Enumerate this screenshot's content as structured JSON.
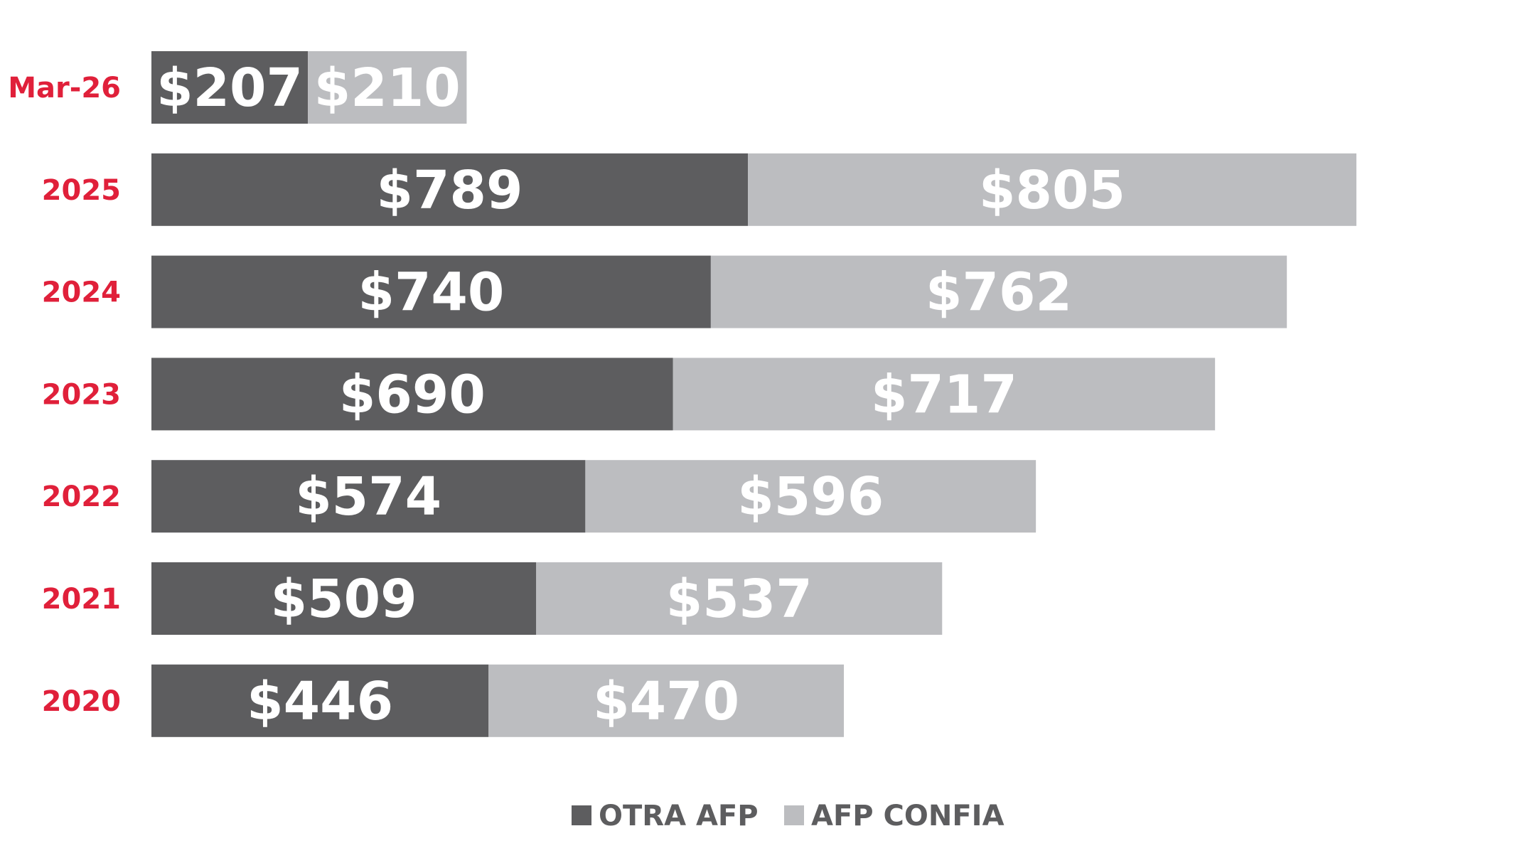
{
  "chart_data": {
    "type": "bar",
    "orientation": "horizontal",
    "stacked": true,
    "categories": [
      "Mar-26",
      "2025",
      "2024",
      "2023",
      "2022",
      "2021",
      "2020"
    ],
    "series": [
      {
        "name": "OTRA AFP",
        "values": [
          207,
          789,
          740,
          690,
          574,
          509,
          446
        ],
        "labels": [
          "$207",
          "$789",
          "$740",
          "$690",
          "$574",
          "$509",
          "$446"
        ],
        "color": "#5d5d5f"
      },
      {
        "name": "AFP CONFIA",
        "values": [
          210,
          805,
          762,
          717,
          596,
          537,
          470
        ],
        "labels": [
          "$210",
          "$805",
          "$762",
          "$717",
          "$596",
          "$537",
          "$470"
        ],
        "color": "#bcbdc0"
      }
    ],
    "xlim": [
      0,
      1594
    ],
    "grid": false,
    "legend": "bottom-center",
    "category_label_color": "#e0203a",
    "legend_text_color": "#5d5d5f",
    "value_label_color": "#ffffff"
  }
}
